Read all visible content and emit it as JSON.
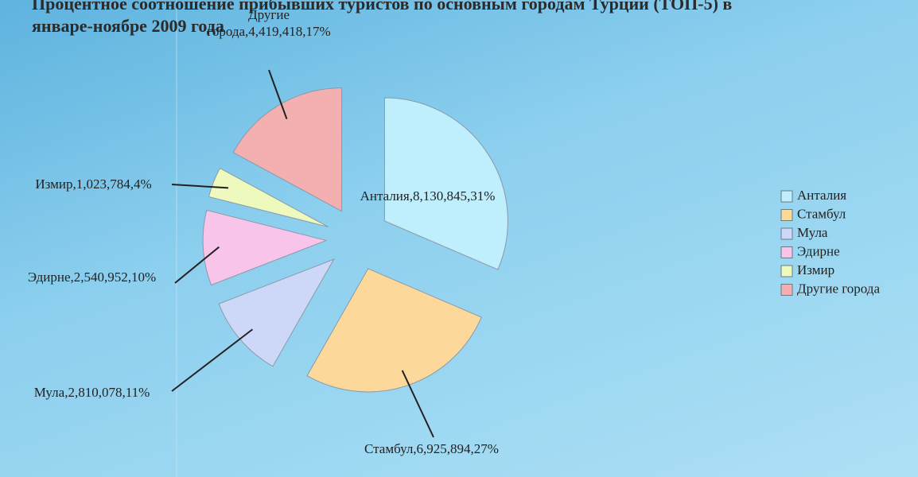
{
  "chart_data": {
    "type": "pie",
    "title": "Процентное соотношение прибывших туристов по основным городам Турции  (ТОП-5) в январе-ноябре 2009 года",
    "categories": [
      "Анталия",
      "Стамбул",
      "Мула",
      "Эдирне",
      "Измир",
      "Другие города"
    ],
    "values": [
      8130845,
      6925894,
      2810078,
      2540952,
      1023784,
      4419418
    ],
    "value_labels": [
      "Анталия,8,130,845,31%",
      "Стамбул,6,925,894,27%",
      "Мула,2,810,078,11%",
      "Эдирне,2,540,952,10%",
      "Измир,1,023,784,4%",
      "Другие города,4,419,418,17%"
    ],
    "colors": [
      "#bfeefc",
      "#fcd99a",
      "#cdd8f8",
      "#f8c4ea",
      "#eef9bd",
      "#f4b0b0"
    ],
    "legend": "right"
  }
}
